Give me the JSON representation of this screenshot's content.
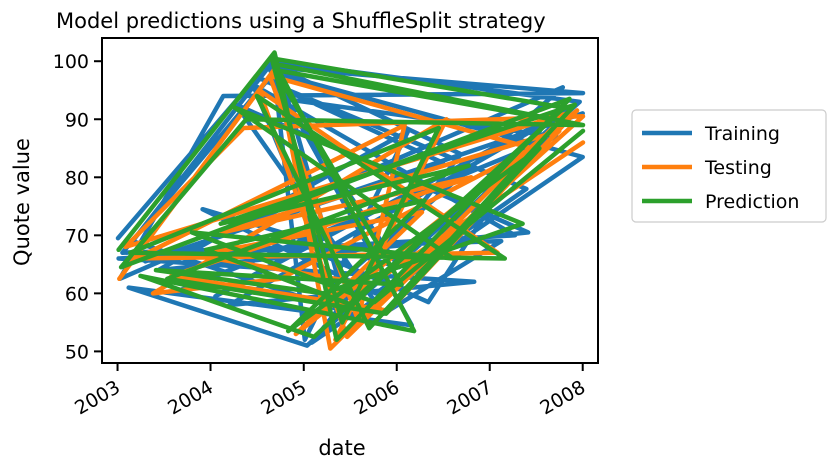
{
  "chart_data": {
    "type": "line",
    "title": "Model predictions using a ShuffleSplit strategy",
    "xlabel": "date",
    "ylabel": "Quote value",
    "x_is_date": true,
    "xlim": [
      "2002-11-01",
      "2008-03-01"
    ],
    "ylim": [
      48,
      104
    ],
    "xticks": [
      {
        "label": "2003",
        "date": "2003-01-01"
      },
      {
        "label": "2004",
        "date": "2004-01-01"
      },
      {
        "label": "2005",
        "date": "2005-01-01"
      },
      {
        "label": "2006",
        "date": "2006-01-01"
      },
      {
        "label": "2007",
        "date": "2007-01-01"
      },
      {
        "label": "2008",
        "date": "2008-01-01"
      }
    ],
    "yticks": [
      50,
      60,
      70,
      80,
      90,
      100
    ],
    "grid": false,
    "legend_position": "outside-right",
    "series": [
      {
        "name": "Training",
        "color": "#1f77b4",
        "x": [
          "2003-01-03",
          "2004-09-10",
          "2005-05-20",
          "2007-10-15",
          "2003-01-10",
          "2004-02-20",
          "2008-01-02",
          "2004-08-15",
          "2006-03-01",
          "2003-02-14",
          "2005-01-14",
          "2007-12-20",
          "2004-09-01",
          "2005-01-05",
          "2006-02-15",
          "2003-06-10",
          "2007-06-01",
          "2004-04-10",
          "2005-11-10",
          "2007-02-15",
          "2003-01-20",
          "2004-09-05",
          "2008-01-01",
          "2005-02-01",
          "2006-09-10",
          "2004-08-25",
          "2003-03-01",
          "2005-08-10",
          "2007-11-20",
          "2004-03-15",
          "2006-11-01",
          "2003-01-05",
          "2007-04-10",
          "2004-06-15",
          "2005-03-20",
          "2006-05-05",
          "2007-08-15",
          "2004-01-20",
          "2005-06-15",
          "2003-09-01",
          "2007-09-20",
          "2004-10-15",
          "2006-01-10",
          "2003-12-01",
          "2005-10-10",
          "2007-05-25",
          "2004-07-15",
          "2006-07-01",
          "2003-04-20",
          "2008-01-01"
        ],
        "values": [
          69.5,
          101.0,
          62.0,
          95.5,
          62.5,
          94.0,
          94.5,
          99.0,
          54.5,
          61.0,
          51.0,
          93.0,
          100.0,
          52.0,
          88.0,
          64.0,
          70.5,
          92.5,
          56.5,
          69.0,
          67.0,
          98.0,
          83.5,
          51.5,
          84.0,
          99.5,
          69.0,
          56.0,
          92.0,
          58.0,
          62.0,
          66.0,
          70.0,
          96.0,
          66.5,
          58.5,
          90.0,
          59.5,
          72.0,
          60.5,
          87.0,
          93.5,
          64.5,
          74.5,
          60.0,
          78.0,
          97.0,
          82.5,
          65.5,
          91.0
        ]
      },
      {
        "name": "Testing",
        "color": "#ff7f0e",
        "x": [
          "2003-01-08",
          "2004-09-15",
          "2005-04-15",
          "2007-11-01",
          "2003-02-01",
          "2004-05-10",
          "2008-01-02",
          "2005-05-05",
          "2006-07-15",
          "2003-05-20",
          "2004-10-01",
          "2007-06-15",
          "2004-08-20",
          "2005-08-01",
          "2006-02-01",
          "2003-03-15",
          "2007-02-01",
          "2004-07-10",
          "2005-06-20",
          "2007-10-01",
          "2004-02-15",
          "2006-10-20",
          "2003-08-01",
          "2005-12-01",
          "2007-12-10",
          "2004-12-01",
          "2006-04-10",
          "2003-11-10",
          "2005-09-20",
          "2008-01-02"
        ],
        "values": [
          62.5,
          99.0,
          50.5,
          91.0,
          68.0,
          88.5,
          90.5,
          52.0,
          90.0,
          60.0,
          62.5,
          85.0,
          97.5,
          55.5,
          89.0,
          66.0,
          67.0,
          95.0,
          52.5,
          88.0,
          70.5,
          80.0,
          63.0,
          57.0,
          91.5,
          53.0,
          74.0,
          66.5,
          61.5,
          86.0
        ]
      },
      {
        "name": "Prediction",
        "color": "#2ca02c",
        "x": [
          "2003-01-05",
          "2004-09-08",
          "2005-05-10",
          "2007-11-10",
          "2003-01-15",
          "2004-05-20",
          "2008-01-02",
          "2004-09-12",
          "2006-03-10",
          "2003-04-01",
          "2005-02-10",
          "2007-10-20",
          "2004-08-28",
          "2005-06-01",
          "2006-06-15",
          "2003-02-20",
          "2007-03-01",
          "2004-07-01",
          "2005-09-15",
          "2007-12-01",
          "2004-02-10",
          "2006-10-10",
          "2003-07-15",
          "2005-11-20",
          "2007-07-15",
          "2004-11-01",
          "2006-04-20",
          "2003-12-15",
          "2005-07-10",
          "2007-09-01",
          "2004-09-09",
          "2006-01-20",
          "2003-06-01",
          "2005-03-20",
          "2007-05-10",
          "2004-04-05",
          "2006-08-10",
          "2003-10-20",
          "2005-10-05",
          "2008-01-02"
        ],
        "values": [
          67.5,
          101.5,
          52.0,
          93.5,
          64.5,
          90.0,
          89.0,
          99.5,
          53.5,
          63.0,
          52.5,
          92.0,
          100.5,
          55.0,
          88.5,
          67.0,
          66.0,
          94.0,
          54.0,
          92.5,
          72.0,
          82.0,
          62.5,
          56.5,
          85.0,
          53.5,
          76.0,
          67.5,
          58.0,
          90.0,
          98.5,
          61.5,
          64.0,
          60.0,
          72.0,
          92.0,
          66.0,
          70.5,
          58.5,
          88.0
        ]
      }
    ]
  }
}
